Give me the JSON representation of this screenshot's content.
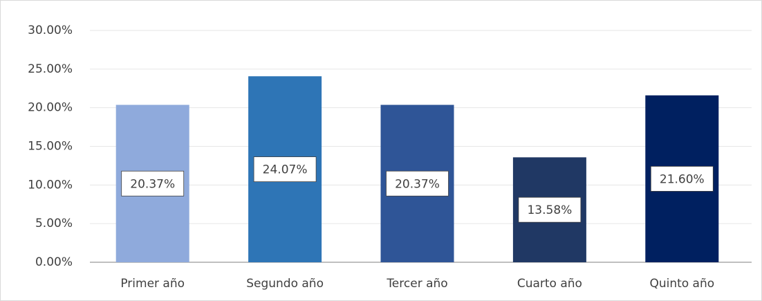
{
  "chart_data": {
    "type": "bar",
    "categories": [
      "Primer año",
      "Segundo año",
      "Tercer año",
      "Cuarto año",
      "Quinto año"
    ],
    "values": [
      20.37,
      24.07,
      20.37,
      13.58,
      21.6
    ],
    "value_labels": [
      "20.37%",
      "24.07%",
      "20.37%",
      "13.58%",
      "21.60%"
    ],
    "colors": [
      "#8faadc",
      "#2e75b6",
      "#2f5597",
      "#203864",
      "#002060"
    ],
    "ylim": [
      0,
      30
    ],
    "yticks": [
      {
        "value": 0,
        "label": "0.00%"
      },
      {
        "value": 5,
        "label": "5.00%"
      },
      {
        "value": 10,
        "label": "10.00%"
      },
      {
        "value": 15,
        "label": "15.00%"
      },
      {
        "value": 20,
        "label": "20.00%"
      },
      {
        "value": 25,
        "label": "25.00%"
      },
      {
        "value": 30,
        "label": "30.00%"
      }
    ],
    "grid": true
  }
}
